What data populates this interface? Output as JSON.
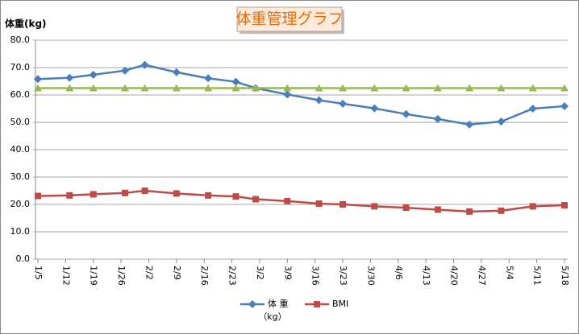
{
  "chart_data": {
    "type": "line",
    "title": "体重管理グラフ",
    "y_label": "体重(kg)",
    "annotations": [
      "（kg）"
    ],
    "xlim": [
      0,
      133
    ],
    "xticks": [
      {
        "value": 0,
        "label": "1/5"
      },
      {
        "value": 7,
        "label": "1/12"
      },
      {
        "value": 14,
        "label": "1/19"
      },
      {
        "value": 21,
        "label": "1/26"
      },
      {
        "value": 28,
        "label": "2/2"
      },
      {
        "value": 35,
        "label": "2/9"
      },
      {
        "value": 42,
        "label": "2/16"
      },
      {
        "value": 49,
        "label": "2/23"
      },
      {
        "value": 56,
        "label": "3/2"
      },
      {
        "value": 63,
        "label": "3/9"
      },
      {
        "value": 70,
        "label": "3/16"
      },
      {
        "value": 77,
        "label": "3/23"
      },
      {
        "value": 84,
        "label": "3/30"
      },
      {
        "value": 91,
        "label": "4/6"
      },
      {
        "value": 98,
        "label": "4/13"
      },
      {
        "value": 105,
        "label": "4/20"
      },
      {
        "value": 112,
        "label": "4/27"
      },
      {
        "value": 119,
        "label": "5/4"
      },
      {
        "value": 126,
        "label": "5/11"
      },
      {
        "value": 133,
        "label": "5/18"
      }
    ],
    "x": [
      0,
      8,
      14,
      22,
      27,
      35,
      43,
      50,
      55,
      63,
      71,
      77,
      85,
      93,
      101,
      109,
      117,
      125,
      133
    ],
    "ylim": [
      0,
      80
    ],
    "yticks": [
      {
        "value": 0,
        "label": "0.0"
      },
      {
        "value": 10,
        "label": "10.0"
      },
      {
        "value": 20,
        "label": "20.0"
      },
      {
        "value": 30,
        "label": "30.0"
      },
      {
        "value": 40,
        "label": "40.0"
      },
      {
        "value": 50,
        "label": "50.0"
      },
      {
        "value": 60,
        "label": "60.0"
      },
      {
        "value": 70,
        "label": "70.0"
      },
      {
        "value": 80,
        "label": "80.0"
      }
    ],
    "grid": true,
    "legend": "bottom",
    "series": [
      {
        "name": "体 重",
        "color": "#4a7ebb",
        "marker": "diamond",
        "values": [
          65.8,
          66.3,
          67.4,
          68.9,
          71,
          68.3,
          66.1,
          64.8,
          62.5,
          60.2,
          58.1,
          56.8,
          55.1,
          53,
          51.2,
          49.2,
          50.3,
          55,
          55.9
        ]
      },
      {
        "name": "BMI",
        "color": "#be4b48",
        "marker": "square",
        "values": [
          23.1,
          23.3,
          23.7,
          24.2,
          25,
          24,
          23.3,
          22.9,
          21.9,
          21.2,
          20.3,
          20,
          19.3,
          18.8,
          18.1,
          17.4,
          17.7,
          19.3,
          19.7
        ]
      },
      {
        "color": "#98b954",
        "marker": "triangle",
        "values": [
          62.5,
          62.5,
          62.5,
          62.5,
          62.5,
          62.5,
          62.5,
          62.5,
          62.5,
          62.5,
          62.5,
          62.5,
          62.5,
          62.5,
          62.5,
          62.5,
          62.5,
          62.5,
          62.5
        ]
      }
    ]
  }
}
